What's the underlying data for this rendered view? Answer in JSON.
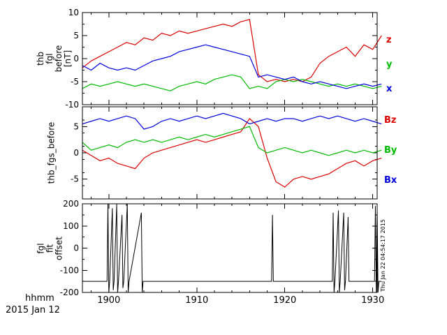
{
  "figure": {
    "background": "#ffffff",
    "axis_color": "#000000"
  },
  "footer": {
    "time_format": "hhmm",
    "date": "2015 Jan 12"
  },
  "watermark": "Thu Jan 22 04:54:17 2015",
  "xaxis": {
    "ticks": [
      1900,
      1910,
      1920,
      1930
    ],
    "labels": [
      "1900",
      "1910",
      "1920",
      "1930"
    ],
    "minor_step": 2,
    "xlim": [
      1897,
      1930.5
    ]
  },
  "chart_data": [
    {
      "type": "line",
      "panel": "thb_fgl_before",
      "ylabel_lines": [
        "thb",
        "fgl",
        "before",
        "[nT]"
      ],
      "ylim": [
        -10,
        10
      ],
      "yticks": [
        -10,
        -5,
        0,
        5,
        10
      ],
      "yminor": 2.5,
      "legend_position": "right",
      "x": [
        1897,
        1898,
        1899,
        1900,
        1901,
        1902,
        1903,
        1904,
        1905,
        1906,
        1907,
        1908,
        1909,
        1910,
        1911,
        1912,
        1913,
        1914,
        1915,
        1916,
        1917,
        1918,
        1919,
        1920,
        1921,
        1922,
        1923,
        1924,
        1925,
        1926,
        1927,
        1928,
        1929,
        1930,
        1931
      ],
      "series": [
        {
          "name": "z",
          "color": "#dd0000",
          "values": [
            -2,
            -0.5,
            0.5,
            1.5,
            2.5,
            3.5,
            3,
            4.5,
            4,
            5.5,
            5,
            6,
            5.5,
            6,
            6.5,
            7,
            7.5,
            7,
            8,
            8.5,
            -3.5,
            -5,
            -4.5,
            -5,
            -4.5,
            -5,
            -4,
            -1,
            0.5,
            1.5,
            2.5,
            0.5,
            3,
            2,
            5
          ]
        },
        {
          "name": "y",
          "color": "#00bb00",
          "values": [
            -6.5,
            -5.5,
            -6,
            -5.5,
            -5,
            -5.5,
            -6,
            -5.5,
            -6,
            -6.5,
            -7,
            -6,
            -5.5,
            -5,
            -5.5,
            -4.5,
            -4,
            -3.5,
            -4,
            -6.5,
            -6,
            -6.5,
            -5,
            -4.5,
            -5,
            -4.5,
            -5,
            -5.5,
            -6,
            -5.5,
            -6,
            -5.5,
            -6,
            -6.5,
            -6
          ]
        },
        {
          "name": "x",
          "color": "#0000dd",
          "values": [
            -1.5,
            -2.5,
            -1,
            -2,
            -2.5,
            -2,
            -2.5,
            -1.5,
            -0.5,
            0,
            0.5,
            1.5,
            2,
            2.5,
            3,
            2.5,
            2,
            1.5,
            1,
            0.5,
            -4,
            -3.5,
            -4,
            -4.5,
            -4,
            -5,
            -5.5,
            -5,
            -5.5,
            -6,
            -6.5,
            -6,
            -5.5,
            -6,
            -5.5
          ]
        }
      ]
    },
    {
      "type": "line",
      "panel": "thb_fgs_before",
      "ylabel_lines": [
        "thb_fgs_before"
      ],
      "ylim": [
        -8.75,
        8.75
      ],
      "yticks": [
        -5,
        0,
        5
      ],
      "yminor": 2.5,
      "legend_position": "right",
      "x": [
        1897,
        1898,
        1899,
        1900,
        1901,
        1902,
        1903,
        1904,
        1905,
        1906,
        1907,
        1908,
        1909,
        1910,
        1911,
        1912,
        1913,
        1914,
        1915,
        1916,
        1917,
        1918,
        1919,
        1920,
        1921,
        1922,
        1923,
        1924,
        1925,
        1926,
        1927,
        1928,
        1929,
        1930,
        1931
      ],
      "series": [
        {
          "name": "Bz",
          "color": "#dd0000",
          "values": [
            0.5,
            -0.5,
            -1.5,
            -1,
            -2,
            -2.5,
            -3,
            -1,
            0,
            0.5,
            1,
            1.5,
            2,
            2.5,
            2,
            2.5,
            3,
            3.5,
            4,
            6.5,
            5,
            -1,
            -5.5,
            -6.5,
            -5,
            -4.5,
            -5,
            -4.5,
            -4,
            -3,
            -2,
            -1.5,
            -2.5,
            -1.5,
            -1
          ]
        },
        {
          "name": "By",
          "color": "#00bb00",
          "values": [
            2,
            0.5,
            1,
            1.5,
            1,
            2,
            2.5,
            2,
            2.5,
            2,
            2.5,
            3,
            2.5,
            3,
            3.5,
            3,
            3.5,
            4,
            4.5,
            5,
            1,
            0,
            0.5,
            1,
            0.5,
            0,
            0.5,
            0,
            -0.5,
            0,
            0.5,
            0,
            0.5,
            0,
            0.5
          ]
        },
        {
          "name": "Bx",
          "color": "#0000dd",
          "values": [
            5.5,
            6,
            6.5,
            6,
            6.5,
            7,
            6.5,
            4.5,
            5,
            6,
            6.5,
            6,
            6.5,
            7,
            6.5,
            7,
            7.5,
            7,
            6.5,
            5.5,
            6,
            6.5,
            6,
            6.5,
            6.5,
            6,
            6.5,
            7,
            6.5,
            7,
            6.5,
            6,
            6.5,
            6,
            5.5
          ]
        }
      ]
    },
    {
      "type": "line",
      "panel": "fgl_fit_offset",
      "ylabel_lines": [
        "fgl",
        "fit",
        "offset"
      ],
      "ylim": [
        -200,
        200
      ],
      "yticks": [
        -200,
        -100,
        0,
        100,
        200
      ],
      "yminor": 50,
      "line_color": "#000000",
      "points": [
        [
          1897,
          -150
        ],
        [
          1899.8,
          -150
        ],
        [
          1899.9,
          200
        ],
        [
          1900.0,
          -200
        ],
        [
          1900.1,
          -150
        ],
        [
          1900.4,
          180
        ],
        [
          1900.5,
          -190
        ],
        [
          1900.6,
          -150
        ],
        [
          1900.9,
          200
        ],
        [
          1901.0,
          -200
        ],
        [
          1901.1,
          -150
        ],
        [
          1901.5,
          150
        ],
        [
          1901.6,
          -180
        ],
        [
          1901.7,
          -150
        ],
        [
          1902.1,
          200
        ],
        [
          1902.2,
          -200
        ],
        [
          1902.3,
          -150
        ],
        [
          1903.7,
          160
        ],
        [
          1903.8,
          -200
        ],
        [
          1903.9,
          -150
        ],
        [
          1918.5,
          -150
        ],
        [
          1918.6,
          150
        ],
        [
          1918.7,
          -150
        ],
        [
          1925.4,
          -150
        ],
        [
          1925.5,
          160
        ],
        [
          1925.6,
          -200
        ],
        [
          1925.7,
          -150
        ],
        [
          1926.1,
          170
        ],
        [
          1926.2,
          -200
        ],
        [
          1926.3,
          -150
        ],
        [
          1926.7,
          160
        ],
        [
          1926.8,
          -190
        ],
        [
          1926.9,
          -150
        ],
        [
          1927.2,
          140
        ],
        [
          1927.3,
          -150
        ],
        [
          1930.2,
          -150
        ],
        [
          1930.3,
          190
        ],
        [
          1930.4,
          -200
        ],
        [
          1930.5,
          170
        ],
        [
          1930.6,
          -200
        ],
        [
          1930.7,
          -150
        ],
        [
          1931,
          -150
        ]
      ]
    }
  ]
}
